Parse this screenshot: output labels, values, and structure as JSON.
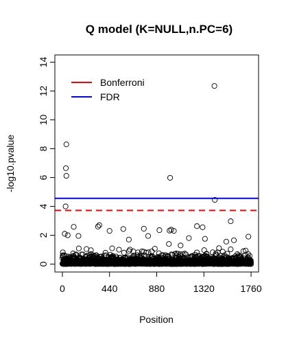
{
  "chart_data": {
    "type": "scatter",
    "title": "Q model (K=NULL,n.PC=6)",
    "xlabel": "Position",
    "ylabel": "-log10.pvalue",
    "xlim": [
      -70,
      1830
    ],
    "ylim": [
      -0.55,
      14.5
    ],
    "xticks": [
      0,
      440,
      880,
      1320,
      1760
    ],
    "yticks": [
      0,
      2,
      4,
      6,
      8,
      10,
      12,
      14
    ],
    "grid": false,
    "legend_position": "top-left",
    "thresholds": [
      {
        "name": "Bonferroni",
        "value": 3.72,
        "color": "#ff0000",
        "style": "dashed"
      },
      {
        "name": "FDR",
        "value": 4.56,
        "color": "#0000ff",
        "style": "solid"
      }
    ],
    "legend": [
      {
        "label": "Bonferroni",
        "color": "#ff0000"
      },
      {
        "label": "FDR",
        "color": "#0000ff"
      }
    ],
    "notable_points": [
      {
        "x": 1418,
        "y": 12.35
      },
      {
        "x": 37,
        "y": 8.3
      },
      {
        "x": 33,
        "y": 6.65
      },
      {
        "x": 37,
        "y": 6.12
      },
      {
        "x": 1005,
        "y": 5.98
      },
      {
        "x": 1422,
        "y": 4.45
      },
      {
        "x": 30,
        "y": 4.0
      },
      {
        "x": 1570,
        "y": 2.97
      },
      {
        "x": 345,
        "y": 2.7
      },
      {
        "x": 332,
        "y": 2.6
      },
      {
        "x": 1255,
        "y": 2.63
      },
      {
        "x": 1308,
        "y": 2.55
      },
      {
        "x": 106,
        "y": 2.58
      },
      {
        "x": 760,
        "y": 2.45
      },
      {
        "x": 568,
        "y": 2.43
      },
      {
        "x": 1000,
        "y": 2.32
      },
      {
        "x": 1015,
        "y": 2.38
      },
      {
        "x": 1040,
        "y": 2.3
      },
      {
        "x": 905,
        "y": 2.35
      },
      {
        "x": 440,
        "y": 2.3
      },
      {
        "x": 22,
        "y": 2.1
      },
      {
        "x": 50,
        "y": 2.0
      },
      {
        "x": 1735,
        "y": 1.9
      },
      {
        "x": 1180,
        "y": 1.8
      },
      {
        "x": 1330,
        "y": 1.75
      },
      {
        "x": 800,
        "y": 1.95
      },
      {
        "x": 150,
        "y": 1.95
      },
      {
        "x": 620,
        "y": 1.7
      },
      {
        "x": 1600,
        "y": 1.65
      }
    ],
    "background_n": 1760,
    "background_x_range": [
      0,
      1760
    ],
    "background_y_typical_max": 1.6
  }
}
